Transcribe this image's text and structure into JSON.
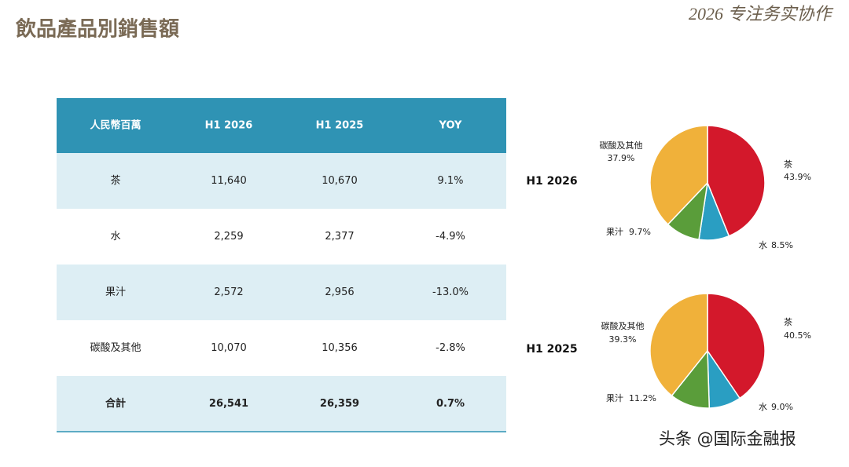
{
  "header": {
    "title": "飲品產品別銷售額",
    "slogan": "2026 专注务实协作"
  },
  "table": {
    "columns": [
      "人民幣百萬",
      "H1 2026",
      "H1 2025",
      "YOY"
    ],
    "rows": [
      [
        "茶",
        "11,640",
        "10,670",
        "9.1%"
      ],
      [
        "水",
        "2,259",
        "2,377",
        "-4.9%"
      ],
      [
        "果汁",
        "2,572",
        "2,956",
        "-13.0%"
      ],
      [
        "碳酸及其他",
        "10,070",
        "10,356",
        "-2.8%"
      ],
      [
        "合計",
        "26,541",
        "26,359",
        "0.7%"
      ]
    ]
  },
  "chart_data": [
    {
      "type": "pie",
      "title": "H1 2026",
      "categories": [
        "茶",
        "水",
        "果汁",
        "碳酸及其他"
      ],
      "values": [
        43.9,
        8.5,
        9.7,
        37.9
      ],
      "value_labels": [
        "43.9%",
        "8.5%",
        "9.7%",
        "37.9%"
      ],
      "colors": [
        "#d3182b",
        "#2a9ec2",
        "#5a9d3a",
        "#f0b13a"
      ]
    },
    {
      "type": "pie",
      "title": "H1 2025",
      "categories": [
        "茶",
        "水",
        "果汁",
        "碳酸及其他"
      ],
      "values": [
        40.5,
        9.0,
        11.2,
        39.3
      ],
      "value_labels": [
        "40.5%",
        "9.0%",
        "11.2%",
        "39.3%"
      ],
      "colors": [
        "#d3182b",
        "#2a9ec2",
        "#5a9d3a",
        "#f0b13a"
      ]
    }
  ],
  "footer": {
    "watermark": "头条 @国际金融报"
  }
}
